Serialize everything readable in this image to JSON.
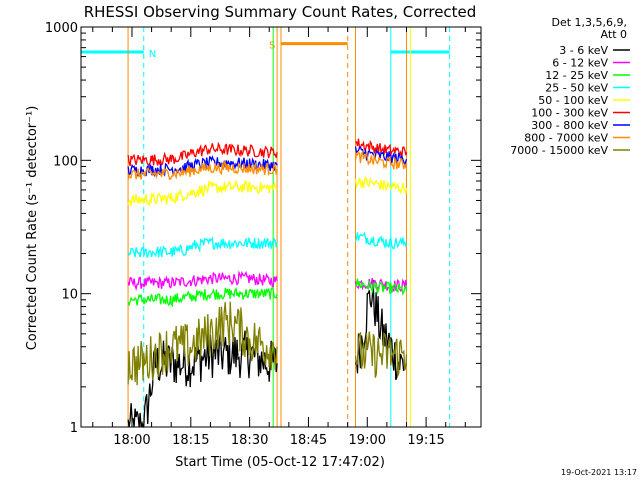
{
  "chart_data": {
    "type": "line",
    "title": "RHESSI Observing Summary Count Rates, Corrected",
    "xlabel": "Start Time (05-Oct-12 17:47:02)",
    "ylabel": "Corrected Count Rate (s⁻¹ detector⁻¹)",
    "yscale": "log",
    "xlim": [
      "17:47",
      "19:29"
    ],
    "ylim": [
      1,
      1000
    ],
    "x_ticks": [
      "18:00",
      "18:15",
      "18:30",
      "18:45",
      "19:00",
      "19:15"
    ],
    "y_ticks": [
      "1",
      "10",
      "100",
      "1000"
    ],
    "grid": false,
    "legend_placement": "top-right-outside",
    "legend_header": [
      "Det 1,3,5,6,9,",
      "Att 0"
    ],
    "series": [
      {
        "name": "3 - 6 keV",
        "color": "#000000",
        "segments": [
          {
            "x": [
              "17:59",
              "18:03",
              "18:06",
              "18:10",
              "18:15",
              "18:20",
              "18:25",
              "18:30",
              "18:35",
              "18:37"
            ],
            "y": [
              1,
              1,
              3,
              3,
              3,
              3.5,
              3.5,
              3.5,
              3,
              3
            ]
          },
          {
            "x": [
              "18:57",
              "18:59",
              "19:00",
              "19:01",
              "19:02",
              "19:03",
              "19:04",
              "19:06",
              "19:08",
              "19:10"
            ],
            "y": [
              3,
              5,
              8,
              10,
              8,
              6,
              5,
              4,
              3,
              3
            ]
          }
        ]
      },
      {
        "name": "6 - 12 keV",
        "color": "#ff00ff",
        "segments": [
          {
            "x": [
              "17:59",
              "18:05",
              "18:10",
              "18:15",
              "18:20",
              "18:25",
              "18:30",
              "18:35",
              "18:37"
            ],
            "y": [
              12,
              12,
              12,
              12.5,
              13,
              13,
              13,
              12.5,
              12.5
            ]
          },
          {
            "x": [
              "18:57",
              "19:00",
              "19:03",
              "19:06",
              "19:10"
            ],
            "y": [
              12,
              12,
              12,
              11.5,
              11.5
            ]
          }
        ]
      },
      {
        "name": "12 - 25 keV",
        "color": "#00ff00",
        "segments": [
          {
            "x": [
              "17:59",
              "18:05",
              "18:10",
              "18:15",
              "18:20",
              "18:25",
              "18:30",
              "18:35",
              "18:37"
            ],
            "y": [
              9,
              9,
              9,
              9.5,
              10,
              10,
              10,
              10,
              10
            ]
          },
          {
            "x": [
              "18:57",
              "19:00",
              "19:03",
              "19:06",
              "19:10"
            ],
            "y": [
              12,
              11.5,
              11,
              11,
              10.5
            ]
          }
        ]
      },
      {
        "name": "25 - 50 keV",
        "color": "#00ffff",
        "segments": [
          {
            "x": [
              "17:59",
              "18:05",
              "18:10",
              "18:13",
              "18:16",
              "18:20",
              "18:25",
              "18:30",
              "18:35",
              "18:37"
            ],
            "y": [
              20,
              20.5,
              20.5,
              21,
              23,
              24,
              24,
              24,
              24,
              24
            ]
          },
          {
            "x": [
              "18:57",
              "19:00",
              "19:03",
              "19:06",
              "19:10"
            ],
            "y": [
              27,
              26,
              25,
              24,
              24
            ]
          }
        ]
      },
      {
        "name": "50 - 100 keV",
        "color": "#ffff00",
        "segments": [
          {
            "x": [
              "17:59",
              "18:05",
              "18:10",
              "18:13",
              "18:16",
              "18:20",
              "18:25",
              "18:30",
              "18:35",
              "18:37"
            ],
            "y": [
              50,
              51,
              52,
              55,
              58,
              62,
              63,
              63,
              62,
              62
            ]
          },
          {
            "x": [
              "18:57",
              "19:00",
              "19:03",
              "19:06",
              "19:10"
            ],
            "y": [
              70,
              68,
              66,
              63,
              62
            ]
          }
        ]
      },
      {
        "name": "100 - 300 keV",
        "color": "#ff0000",
        "segments": [
          {
            "x": [
              "17:59",
              "18:05",
              "18:10",
              "18:13",
              "18:16",
              "18:20",
              "18:25",
              "18:30",
              "18:35",
              "18:37"
            ],
            "y": [
              100,
              101,
              102,
              106,
              115,
              122,
              120,
              118,
              115,
              115
            ]
          },
          {
            "x": [
              "18:57",
              "19:00",
              "19:03",
              "19:06",
              "19:10"
            ],
            "y": [
              135,
              128,
              122,
              118,
              115
            ]
          }
        ]
      },
      {
        "name": "300 - 800 keV",
        "color": "#0000ff",
        "segments": [
          {
            "x": [
              "17:59",
              "18:05",
              "18:10",
              "18:13",
              "18:16",
              "18:20",
              "18:25",
              "18:30",
              "18:35",
              "18:37"
            ],
            "y": [
              84,
              85,
              86,
              88,
              92,
              96,
              96,
              94,
              92,
              92
            ]
          },
          {
            "x": [
              "18:57",
              "19:00",
              "19:03",
              "19:06",
              "19:10"
            ],
            "y": [
              118,
              112,
              108,
              105,
              102
            ]
          }
        ]
      },
      {
        "name": "800 - 7000 keV",
        "color": "#ff8c00",
        "segments": [
          {
            "x": [
              "17:59",
              "18:05",
              "18:10",
              "18:13",
              "18:16",
              "18:20",
              "18:25",
              "18:30",
              "18:35",
              "18:37"
            ],
            "y": [
              78,
              79,
              80,
              81,
              85,
              88,
              88,
              87,
              86,
              86
            ]
          },
          {
            "x": [
              "18:57",
              "19:00",
              "19:03",
              "19:06",
              "19:10"
            ],
            "y": [
              108,
              102,
              98,
              95,
              93
            ]
          }
        ]
      },
      {
        "name": "7000 - 15000 keV",
        "color": "#808000",
        "segments": [
          {
            "x": [
              "17:59",
              "18:03",
              "18:06",
              "18:10",
              "18:15",
              "18:20",
              "18:23",
              "18:26",
              "18:30",
              "18:35",
              "18:37"
            ],
            "y": [
              3,
              3,
              3.5,
              4,
              4,
              5,
              6,
              6,
              4.5,
              4,
              4
            ]
          },
          {
            "x": [
              "18:57",
              "19:00",
              "19:03",
              "19:06",
              "19:10"
            ],
            "y": [
              3.5,
              3.5,
              3.5,
              3.5,
              3.5
            ]
          }
        ]
      }
    ],
    "shaded_flags": [
      {
        "label": "N",
        "color": "#00ffff",
        "y": 650,
        "intervals": [
          [
            "17:47",
            "18:03"
          ],
          [
            "19:06",
            "19:21"
          ]
        ]
      },
      {
        "label": "S",
        "color": "#ff8c00",
        "y": 750,
        "intervals": [
          [
            "18:38",
            "18:55"
          ]
        ]
      }
    ],
    "vlines": [
      {
        "x": "17:47",
        "color": "#00ffff",
        "style": "solid"
      },
      {
        "x": "18:03",
        "color": "#00ffff",
        "style": "dashed"
      },
      {
        "x": "19:06",
        "color": "#00ffff",
        "style": "solid"
      },
      {
        "x": "19:21",
        "color": "#00ffff",
        "style": "dashed"
      },
      {
        "x": "18:38",
        "color": "#ff8c00",
        "style": "solid"
      },
      {
        "x": "18:55",
        "color": "#ff8c00",
        "style": "dashed"
      },
      {
        "x": "17:59",
        "color": "#ff8c00",
        "style": "solid"
      },
      {
        "x": "18:37",
        "color": "#ff8c00",
        "style": "solid"
      },
      {
        "x": "18:57",
        "color": "#ff8c00",
        "style": "solid"
      },
      {
        "x": "19:10",
        "color": "#ff8c00",
        "style": "solid"
      },
      {
        "x": "18:36",
        "color": "#00ff00",
        "style": "solid"
      },
      {
        "x": "19:11",
        "color": "#ffff00",
        "style": "solid"
      }
    ],
    "timestamp": "19-Oct-2021 13:17"
  }
}
